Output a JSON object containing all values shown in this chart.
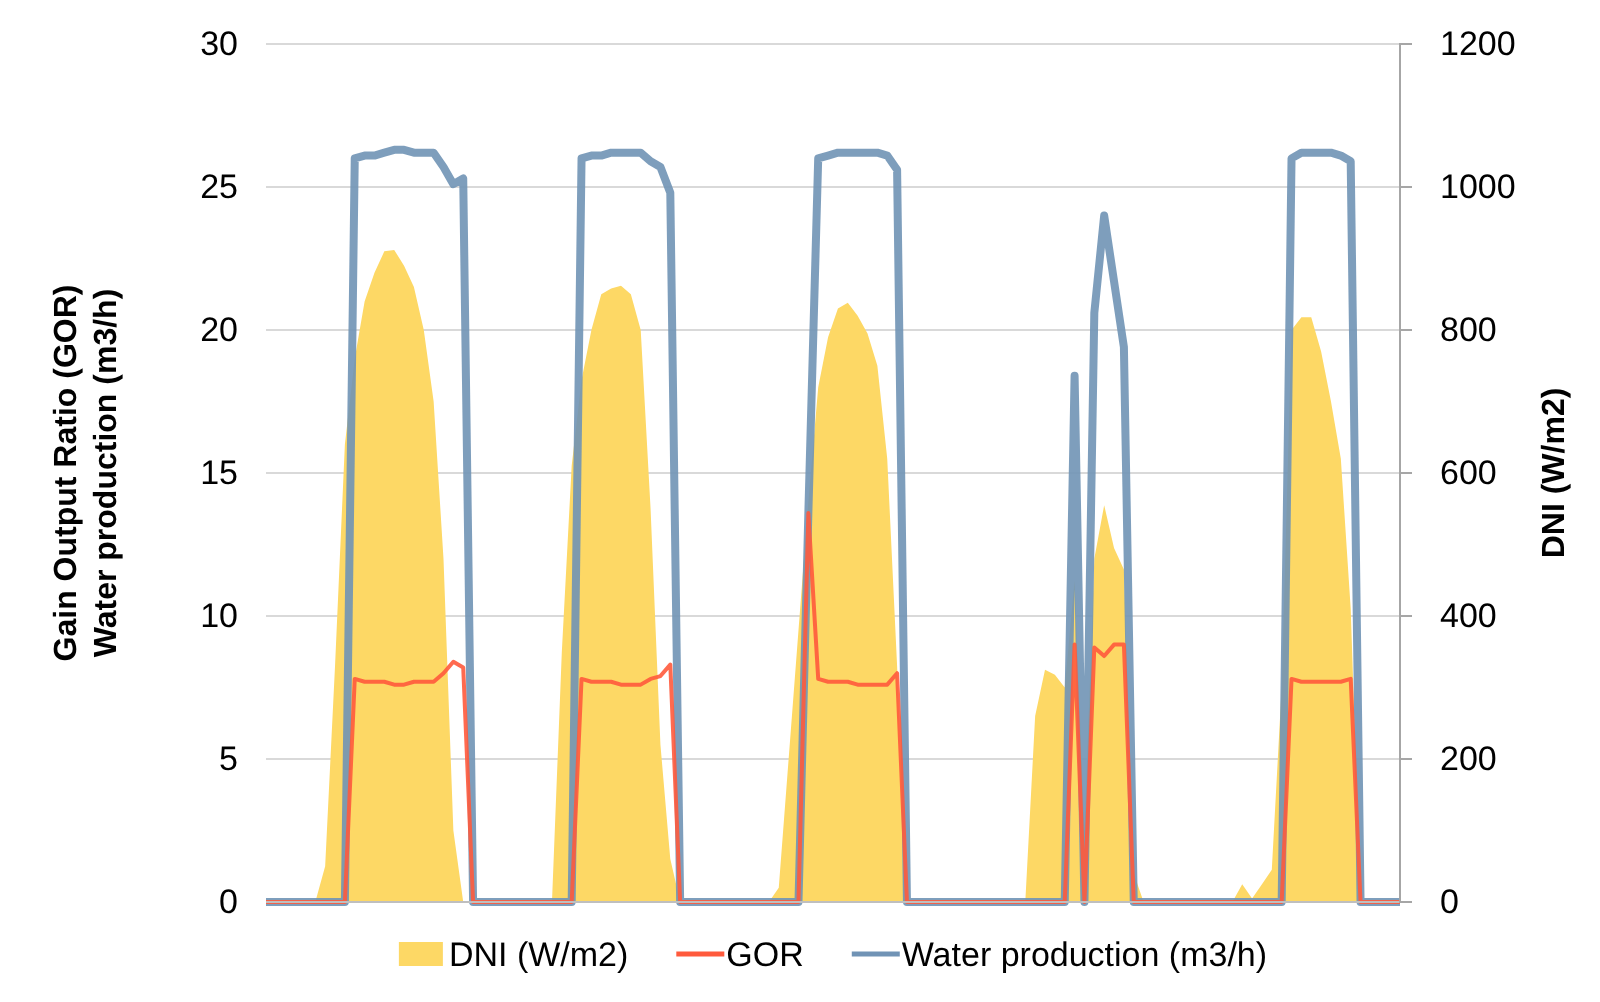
{
  "chart_data": {
    "type": "line",
    "ylabel": "Gain Output Ratio (GOR)\nWater production (m3/h)",
    "y2label": "DNI (W/m2)",
    "categories": [
      null,
      null,
      null,
      null,
      null,
      null,
      null,
      null,
      null,
      null,
      null,
      null,
      null,
      null,
      null,
      null,
      null,
      null,
      null,
      null,
      null,
      null,
      null,
      null,
      null,
      null,
      null,
      null,
      null,
      null,
      null,
      null,
      null,
      null,
      null,
      null,
      null,
      null,
      null,
      null,
      null,
      null,
      null,
      null,
      null,
      null,
      null,
      null,
      null,
      null,
      null,
      null,
      null,
      null,
      null,
      null,
      null,
      null,
      null,
      null,
      null,
      null,
      null,
      null,
      null,
      null,
      null,
      null,
      null,
      null,
      null,
      null,
      null,
      null,
      null,
      null,
      null,
      null,
      null,
      null,
      null,
      null,
      null,
      null,
      null,
      null,
      null,
      null,
      null,
      null,
      null,
      null,
      null,
      null,
      null,
      null,
      null,
      null,
      null,
      null,
      null,
      null,
      null,
      null,
      null,
      null,
      null,
      null,
      null,
      null,
      null,
      null,
      null,
      null,
      null,
      null
    ],
    "series": [
      {
        "name": "DNI (W/m2)",
        "type": "area",
        "axis": "y2",
        "color": "#fdd865",
        "values": [
          0,
          0,
          0,
          0,
          0,
          0,
          50,
          330,
          640,
          760,
          840,
          880,
          910,
          912,
          890,
          860,
          800,
          700,
          480,
          100,
          0,
          0,
          0,
          0,
          0,
          0,
          0,
          0,
          0,
          0,
          350,
          610,
          730,
          800,
          850,
          858,
          862,
          850,
          800,
          550,
          220,
          60,
          0,
          0,
          0,
          0,
          0,
          0,
          0,
          0,
          0,
          0,
          20,
          200,
          380,
          560,
          720,
          790,
          830,
          838,
          820,
          795,
          750,
          620,
          330,
          0,
          0,
          0,
          0,
          0,
          0,
          0,
          0,
          0,
          0,
          0,
          0,
          0,
          260,
          325,
          318,
          300,
          450,
          100,
          480,
          555,
          495,
          465,
          40,
          0,
          0,
          0,
          0,
          0,
          0,
          0,
          0,
          0,
          0,
          25,
          5,
          25,
          45,
          300,
          800,
          818,
          818,
          770,
          700,
          620,
          410,
          0,
          0,
          0,
          0,
          0
        ]
      },
      {
        "name": "GOR",
        "type": "line",
        "color": "#ff5a3c",
        "values": [
          0,
          0,
          0,
          0,
          0,
          0,
          0,
          0,
          0,
          7.8,
          7.7,
          7.7,
          7.7,
          7.6,
          7.6,
          7.7,
          7.7,
          7.7,
          8.0,
          8.4,
          8.2,
          0,
          0,
          0,
          0,
          0,
          0,
          0,
          0,
          0,
          0,
          0,
          7.8,
          7.7,
          7.7,
          7.7,
          7.6,
          7.6,
          7.6,
          7.8,
          7.9,
          8.3,
          0,
          0,
          0,
          0,
          0,
          0,
          0,
          0,
          0,
          0,
          0,
          0,
          0,
          13.6,
          7.8,
          7.7,
          7.7,
          7.7,
          7.6,
          7.6,
          7.6,
          7.6,
          8.0,
          0,
          0,
          0,
          0,
          0,
          0,
          0,
          0,
          0,
          0,
          0,
          0,
          0,
          0,
          0,
          0,
          0,
          9.0,
          0,
          8.9,
          8.6,
          9.0,
          9.0,
          0,
          0,
          0,
          0,
          0,
          0,
          0,
          0,
          0,
          0,
          0,
          0,
          0,
          0,
          0,
          0,
          7.8,
          7.7,
          7.7,
          7.7,
          7.7,
          7.7,
          7.8,
          0,
          0,
          0,
          0,
          0
        ]
      },
      {
        "name": "Water production (m3/h)",
        "type": "line",
        "color": "#7093b5",
        "values": [
          0,
          0,
          0,
          0,
          0,
          0,
          0,
          0,
          0,
          26.0,
          26.1,
          26.1,
          26.2,
          26.3,
          26.3,
          26.2,
          26.2,
          26.2,
          25.7,
          25.1,
          25.3,
          0,
          0,
          0,
          0,
          0,
          0,
          0,
          0,
          0,
          0,
          0,
          26.0,
          26.1,
          26.1,
          26.2,
          26.2,
          26.2,
          26.2,
          25.9,
          25.7,
          24.8,
          0,
          0,
          0,
          0,
          0,
          0,
          0,
          0,
          0,
          0,
          0,
          0,
          0,
          13.6,
          26.0,
          26.1,
          26.2,
          26.2,
          26.2,
          26.2,
          26.2,
          26.1,
          25.6,
          0,
          0,
          0,
          0,
          0,
          0,
          0,
          0,
          0,
          0,
          0,
          0,
          0,
          0,
          0,
          0,
          0,
          18.4,
          0,
          20.6,
          24.0,
          21.7,
          19.4,
          0,
          0,
          0,
          0,
          0,
          0,
          0,
          0,
          0,
          0,
          0,
          0,
          0,
          0,
          0,
          0,
          26.0,
          26.2,
          26.2,
          26.2,
          26.2,
          26.1,
          25.9,
          0,
          0,
          0,
          0,
          0
        ]
      }
    ],
    "ylim": [
      0,
      30
    ],
    "yticks": [
      0,
      5,
      10,
      15,
      20,
      25,
      30
    ],
    "y2lim": [
      0,
      1200
    ],
    "y2ticks": [
      0,
      200,
      400,
      600,
      800,
      1000,
      1200
    ],
    "grid": "y",
    "legend": "bottom",
    "line_style": "solid",
    "marker": "none"
  }
}
